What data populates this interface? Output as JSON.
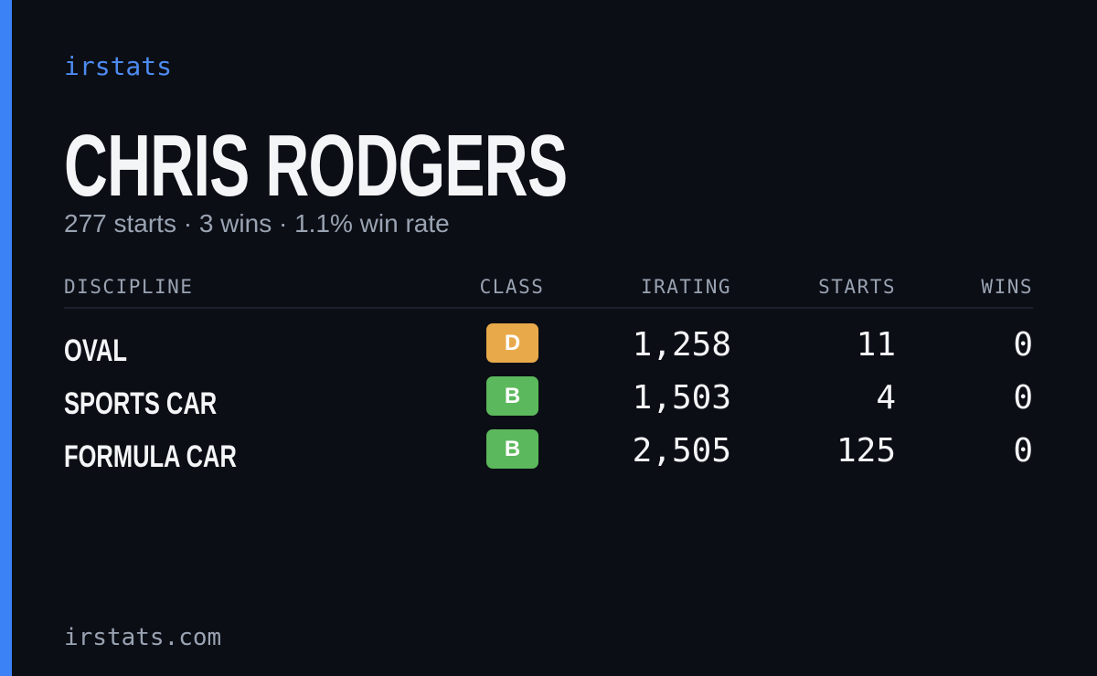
{
  "brand": "irstats",
  "driver": {
    "name": "CHRIS RODGERS",
    "summary": "277 starts · 3 wins · 1.1% win rate"
  },
  "table": {
    "headers": [
      "DISCIPLINE",
      "CLASS",
      "IRATING",
      "STARTS",
      "WINS"
    ],
    "rows": [
      {
        "discipline": "OVAL",
        "class": "D",
        "class_color": "#e8a94a",
        "irating": "1,258",
        "starts": "11",
        "wins": "0"
      },
      {
        "discipline": "SPORTS CAR",
        "class": "B",
        "class_color": "#5cb85c",
        "irating": "1,503",
        "starts": "4",
        "wins": "0"
      },
      {
        "discipline": "FORMULA CAR",
        "class": "B",
        "class_color": "#5cb85c",
        "irating": "2,505",
        "starts": "125",
        "wins": "0"
      }
    ]
  },
  "footer": "irstats.com"
}
